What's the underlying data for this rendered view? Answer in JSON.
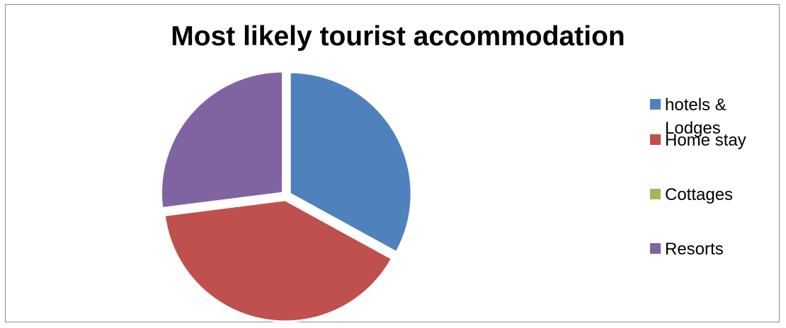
{
  "colors": {
    "hotels_lodges": "#4f81bd",
    "home_stay": "#c0504d",
    "cottages": "#9bbb59",
    "resorts": "#8064a2"
  },
  "chart_data": {
    "type": "pie",
    "title": "Most likely tourist accommodation",
    "legend_position": "right",
    "categories": [
      "hotels & Lodges",
      "Home stay",
      "Cottages",
      "Resorts"
    ],
    "values": [
      33,
      40,
      0,
      27
    ],
    "exploded": true,
    "legend": [
      {
        "label_lines": [
          "hotels &",
          "Lodges"
        ],
        "color": "#4f81bd"
      },
      {
        "label_lines": [
          "Home stay"
        ],
        "color": "#c0504d"
      },
      {
        "label_lines": [
          "Cottages"
        ],
        "color": "#9bbb59"
      },
      {
        "label_lines": [
          "Resorts"
        ],
        "color": "#8064a2"
      }
    ]
  }
}
